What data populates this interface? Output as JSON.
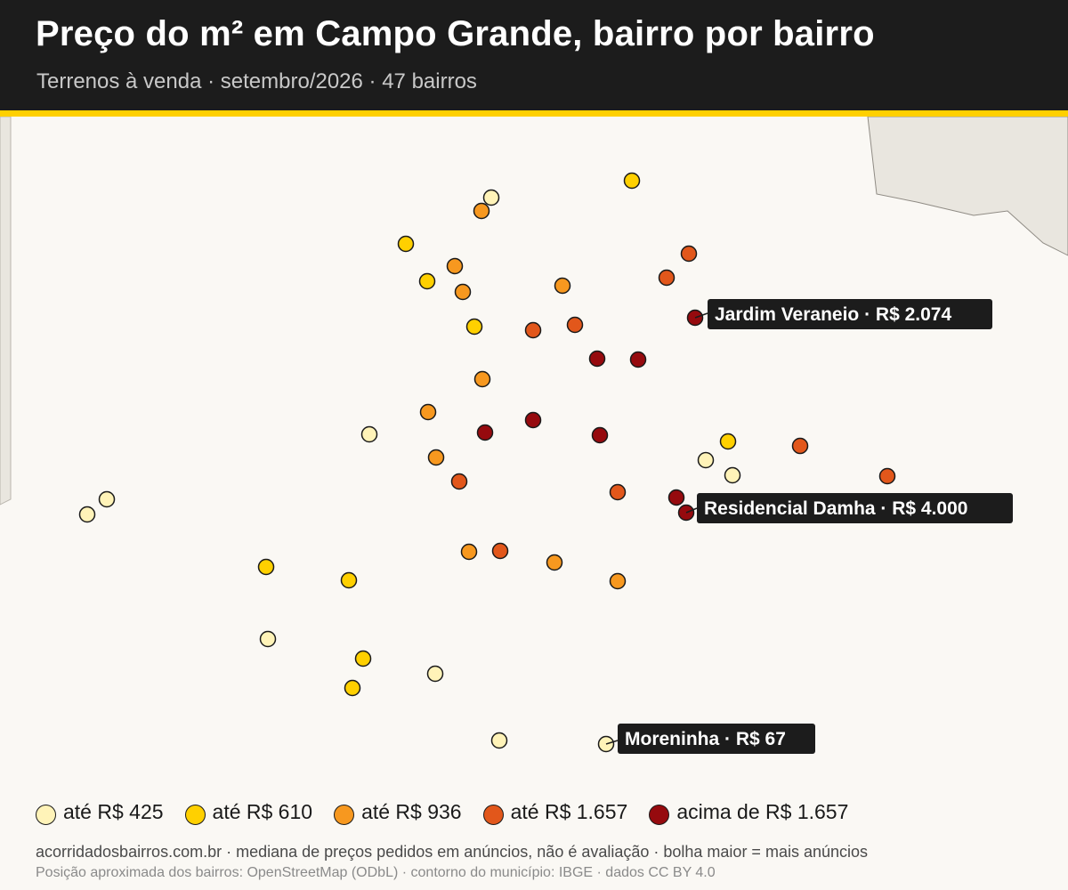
{
  "header": {
    "title": "Preço do m² em Campo Grande, bairro por bairro",
    "subtitle": "Terrenos à venda · setembro/2026 · 47 bairros"
  },
  "colors": {
    "header_bg": "#1c1c1c",
    "accent": "#ffd000",
    "map_bg": "#faf8f4",
    "outside_area": "#e9e6df",
    "marker_stroke": "#1a1a1a",
    "callout_bg": "#1c1c1c",
    "callout_text": "#ffffff"
  },
  "legend": [
    {
      "label": "até R$ 425",
      "color": "#fff3b8"
    },
    {
      "label": "até R$ 610",
      "color": "#ffd000"
    },
    {
      "label": "até R$ 936",
      "color": "#f7981f"
    },
    {
      "label": "até R$ 1.657",
      "color": "#e2571b"
    },
    {
      "label": "acima de R$ 1.657",
      "color": "#960a0e"
    }
  ],
  "callouts": [
    {
      "text": "Jardim Veraneio · R$ 2.074"
    },
    {
      "text": "Residencial Damha · R$ 4.000"
    },
    {
      "text": "Moreninha · R$ 67"
    }
  ],
  "footer": {
    "line1": "acorridadosbairros.com.br · mediana de preços pedidos em anúncios, não é avaliação · bolha maior = mais anúncios",
    "line2": "Posição aproximada dos bairros: OpenStreetMap (ODbL) · contorno do município: IBGE · dados CC BY 4.0"
  }
}
